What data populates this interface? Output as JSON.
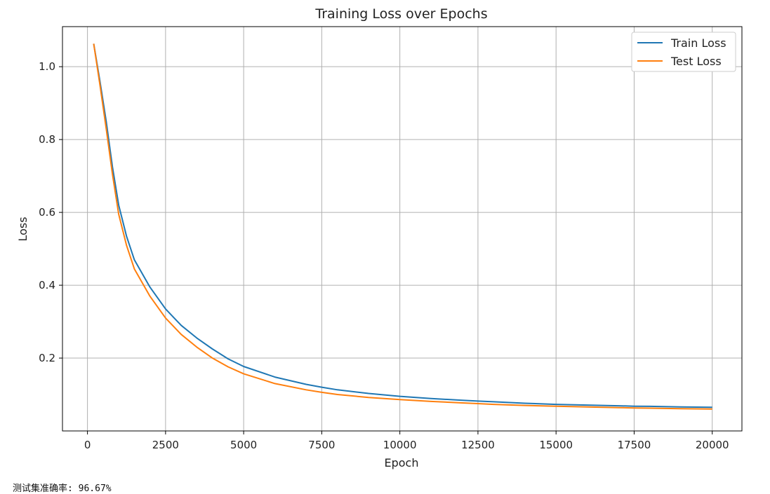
{
  "chart_data": {
    "type": "line",
    "title": "Training Loss over Epochs",
    "xlabel": "Epoch",
    "ylabel": "Loss",
    "xlim": [
      -800,
      20950
    ],
    "ylim": [
      0.0,
      1.11
    ],
    "xticks": [
      0,
      2500,
      5000,
      7500,
      10000,
      12500,
      15000,
      17500,
      20000
    ],
    "yticks": [
      0.2,
      0.4,
      0.6,
      0.8,
      1.0
    ],
    "grid": true,
    "legend_position": "top-right",
    "x": [
      200,
      400,
      600,
      800,
      1000,
      1250,
      1500,
      2000,
      2500,
      3000,
      3500,
      4000,
      4500,
      5000,
      6000,
      7000,
      7500,
      8000,
      9000,
      10000,
      11000,
      12000,
      12500,
      13000,
      14000,
      15000,
      16000,
      17000,
      17500,
      18000,
      19000,
      20000
    ],
    "series": [
      {
        "name": "Train Loss",
        "color": "#1f77b4",
        "values": [
          1.063,
          0.96,
          0.85,
          0.725,
          0.62,
          0.535,
          0.47,
          0.395,
          0.335,
          0.29,
          0.255,
          0.225,
          0.198,
          0.177,
          0.148,
          0.128,
          0.12,
          0.113,
          0.103,
          0.095,
          0.089,
          0.084,
          0.082,
          0.08,
          0.076,
          0.073,
          0.071,
          0.069,
          0.068,
          0.0675,
          0.066,
          0.065
        ]
      },
      {
        "name": "Test Loss",
        "color": "#ff7f0e",
        "values": [
          1.063,
          0.95,
          0.83,
          0.705,
          0.595,
          0.51,
          0.445,
          0.37,
          0.31,
          0.265,
          0.23,
          0.2,
          0.176,
          0.157,
          0.13,
          0.113,
          0.106,
          0.1,
          0.092,
          0.086,
          0.081,
          0.077,
          0.075,
          0.073,
          0.07,
          0.068,
          0.066,
          0.064,
          0.063,
          0.0625,
          0.061,
          0.06
        ]
      }
    ]
  },
  "caption": {
    "text": "测试集准确率: 96.67%"
  }
}
